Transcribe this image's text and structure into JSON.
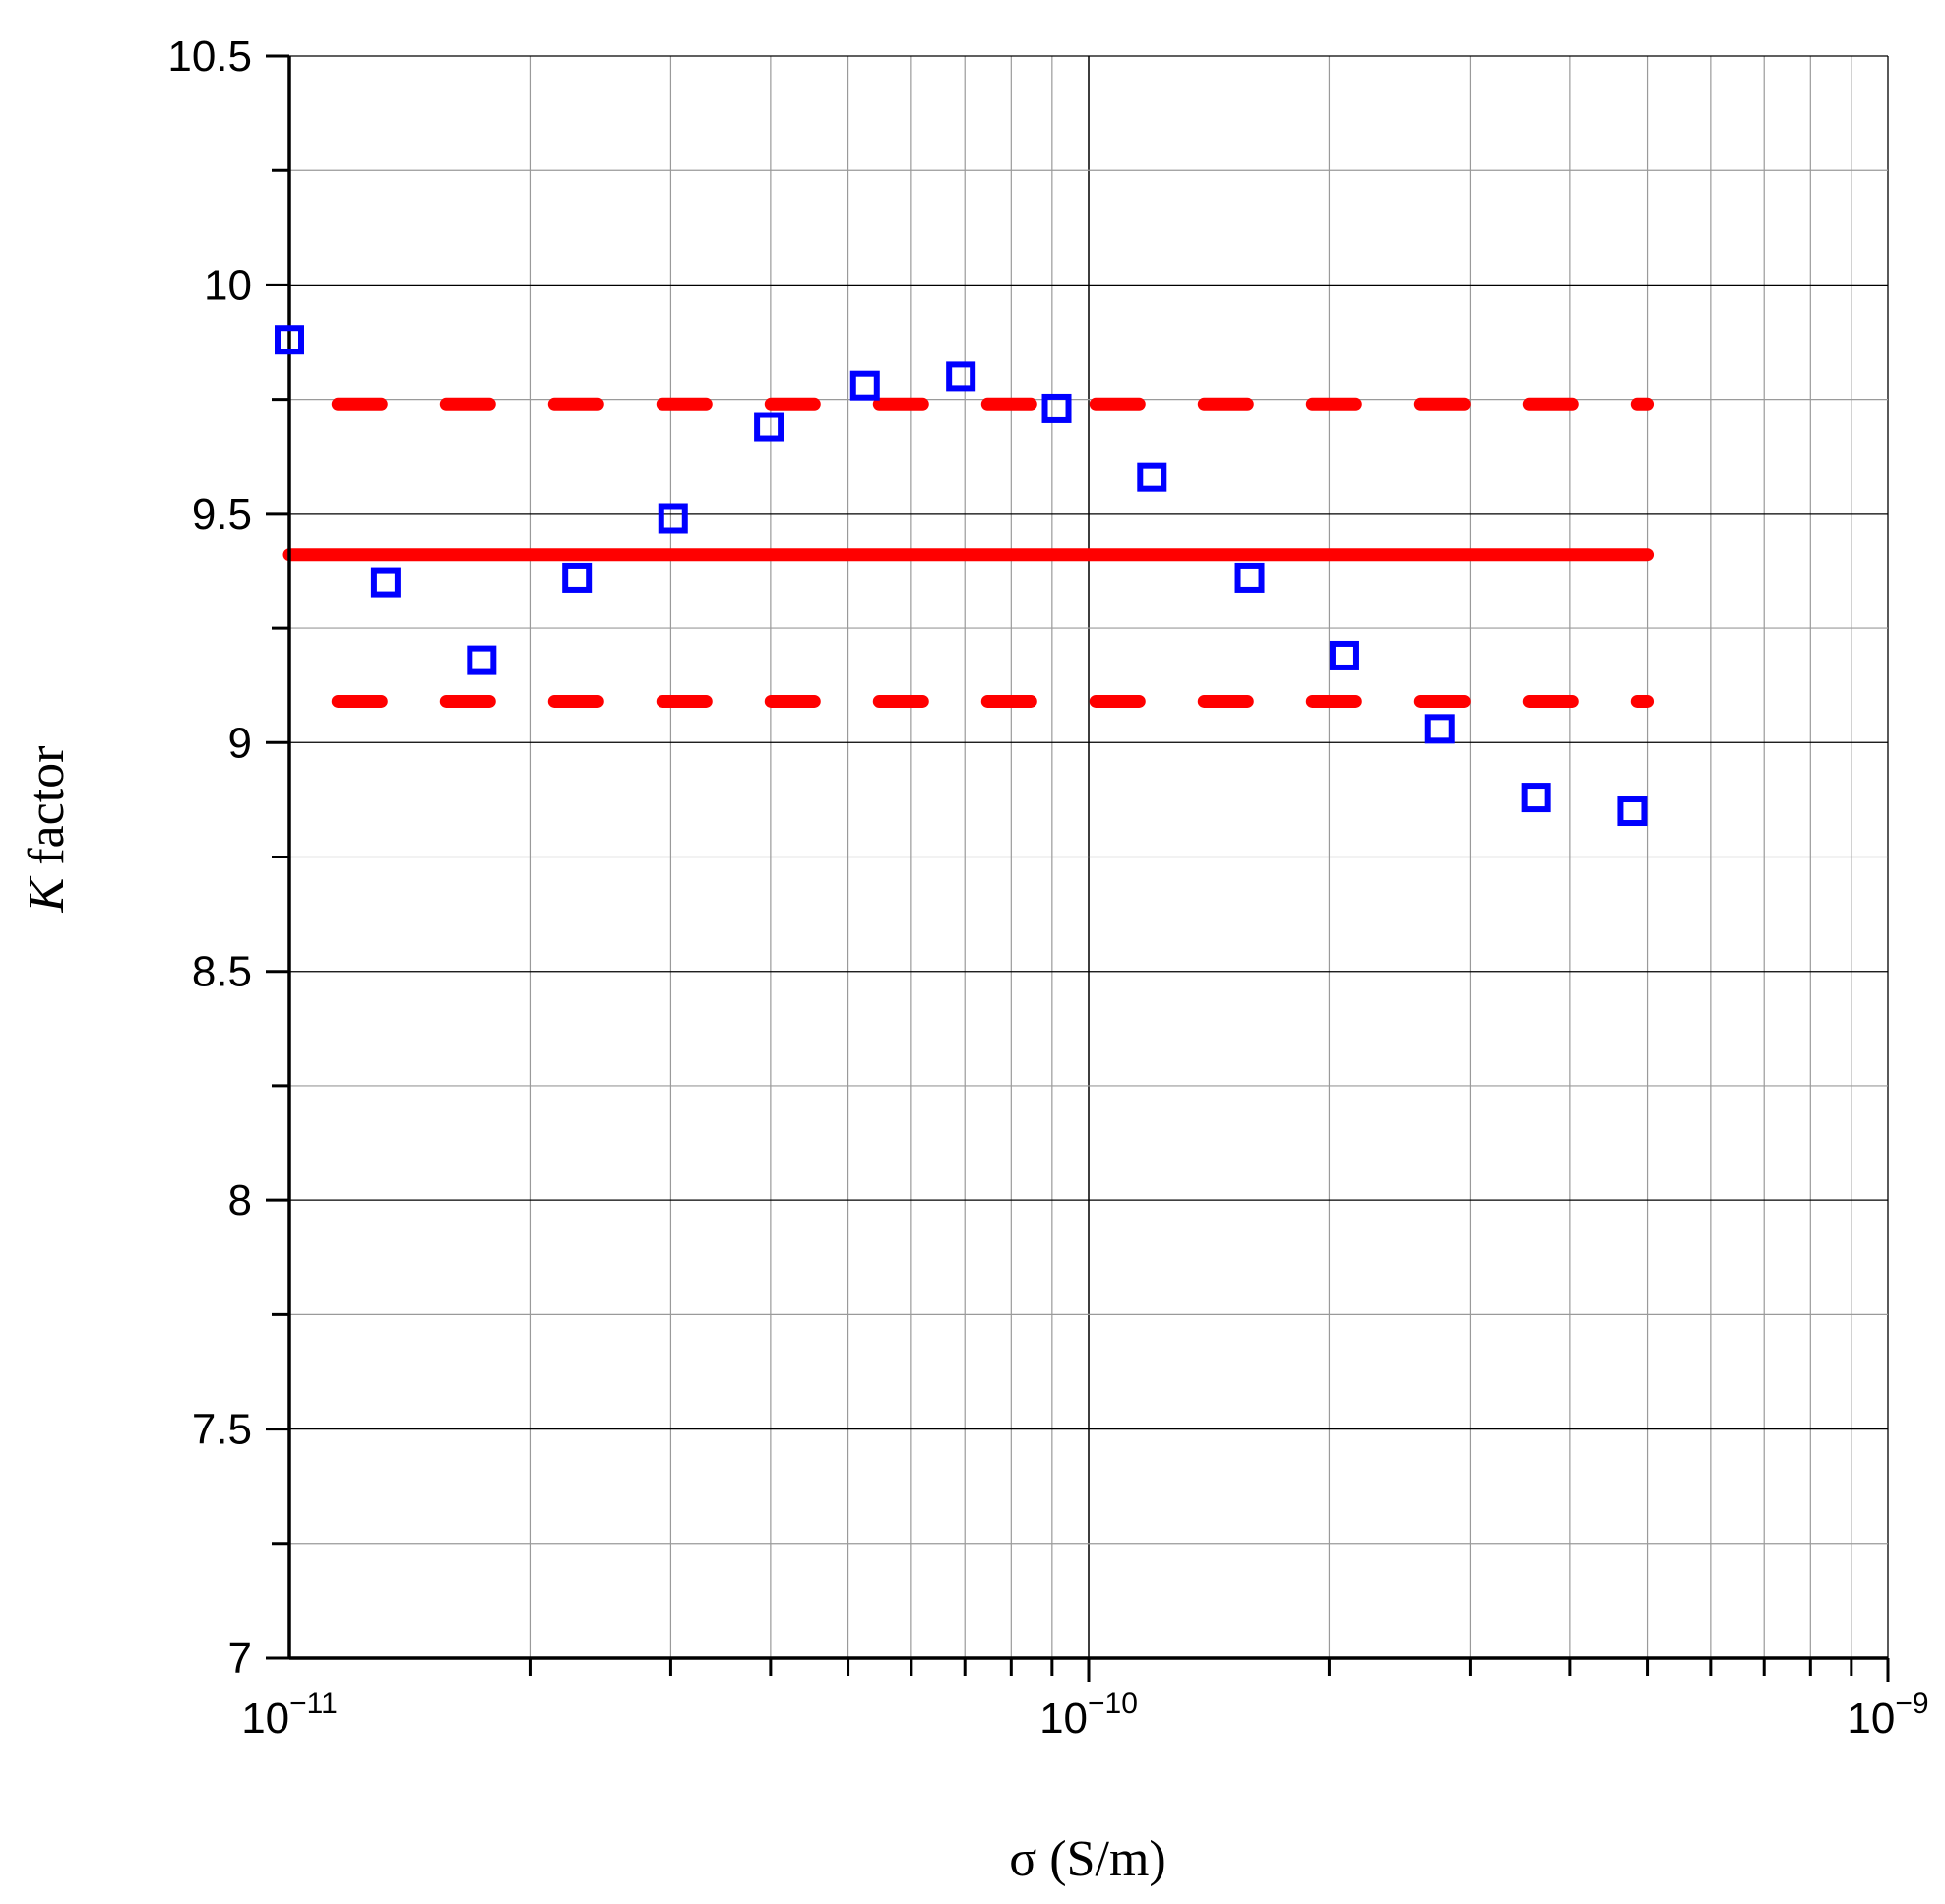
{
  "chart_data": {
    "type": "scatter",
    "xlabel": "σ (S/m)",
    "ylabel_italic": "K",
    "ylabel_rest": " factor",
    "x_scale": "log",
    "xlim": [
      1e-11,
      1e-09
    ],
    "ylim": [
      7,
      10.5
    ],
    "x_ticks": [
      {
        "value": 1e-11,
        "base": "10",
        "exp": "−11"
      },
      {
        "value": 1e-10,
        "base": "10",
        "exp": "−10"
      },
      {
        "value": 1e-09,
        "base": "10",
        "exp": "−9"
      }
    ],
    "y_ticks": [
      {
        "value": 7,
        "label": "7"
      },
      {
        "value": 7.5,
        "label": "7.5"
      },
      {
        "value": 8,
        "label": "8"
      },
      {
        "value": 8.5,
        "label": "8.5"
      },
      {
        "value": 9,
        "label": "9"
      },
      {
        "value": 9.5,
        "label": "9.5"
      },
      {
        "value": 10,
        "label": "10"
      },
      {
        "value": 10.5,
        "label": "10.5"
      }
    ],
    "grid": true,
    "points": {
      "marker": "open-square",
      "color": "#0000ff",
      "x": [
        1e-11,
        1.32e-11,
        1.74e-11,
        2.29e-11,
        3.02e-11,
        3.98e-11,
        5.25e-11,
        6.92e-11,
        9.12e-11,
        1.2e-10,
        1.59e-10,
        2.09e-10,
        2.75e-10,
        3.63e-10,
        4.79e-10
      ],
      "y": [
        9.88,
        9.35,
        9.18,
        9.36,
        9.49,
        9.69,
        9.78,
        9.8,
        9.73,
        9.58,
        9.36,
        9.19,
        9.03,
        8.88,
        8.85
      ]
    },
    "lines": [
      {
        "style": "solid",
        "color": "#ff0000",
        "y": 9.41,
        "x_range": [
          1e-11,
          5e-10
        ]
      },
      {
        "style": "dashed",
        "color": "#ff0000",
        "y": 9.74,
        "x_range": [
          1.15e-11,
          5e-10
        ]
      },
      {
        "style": "dashed",
        "color": "#ff0000",
        "y": 9.09,
        "x_range": [
          1.15e-11,
          5e-10
        ]
      }
    ]
  }
}
